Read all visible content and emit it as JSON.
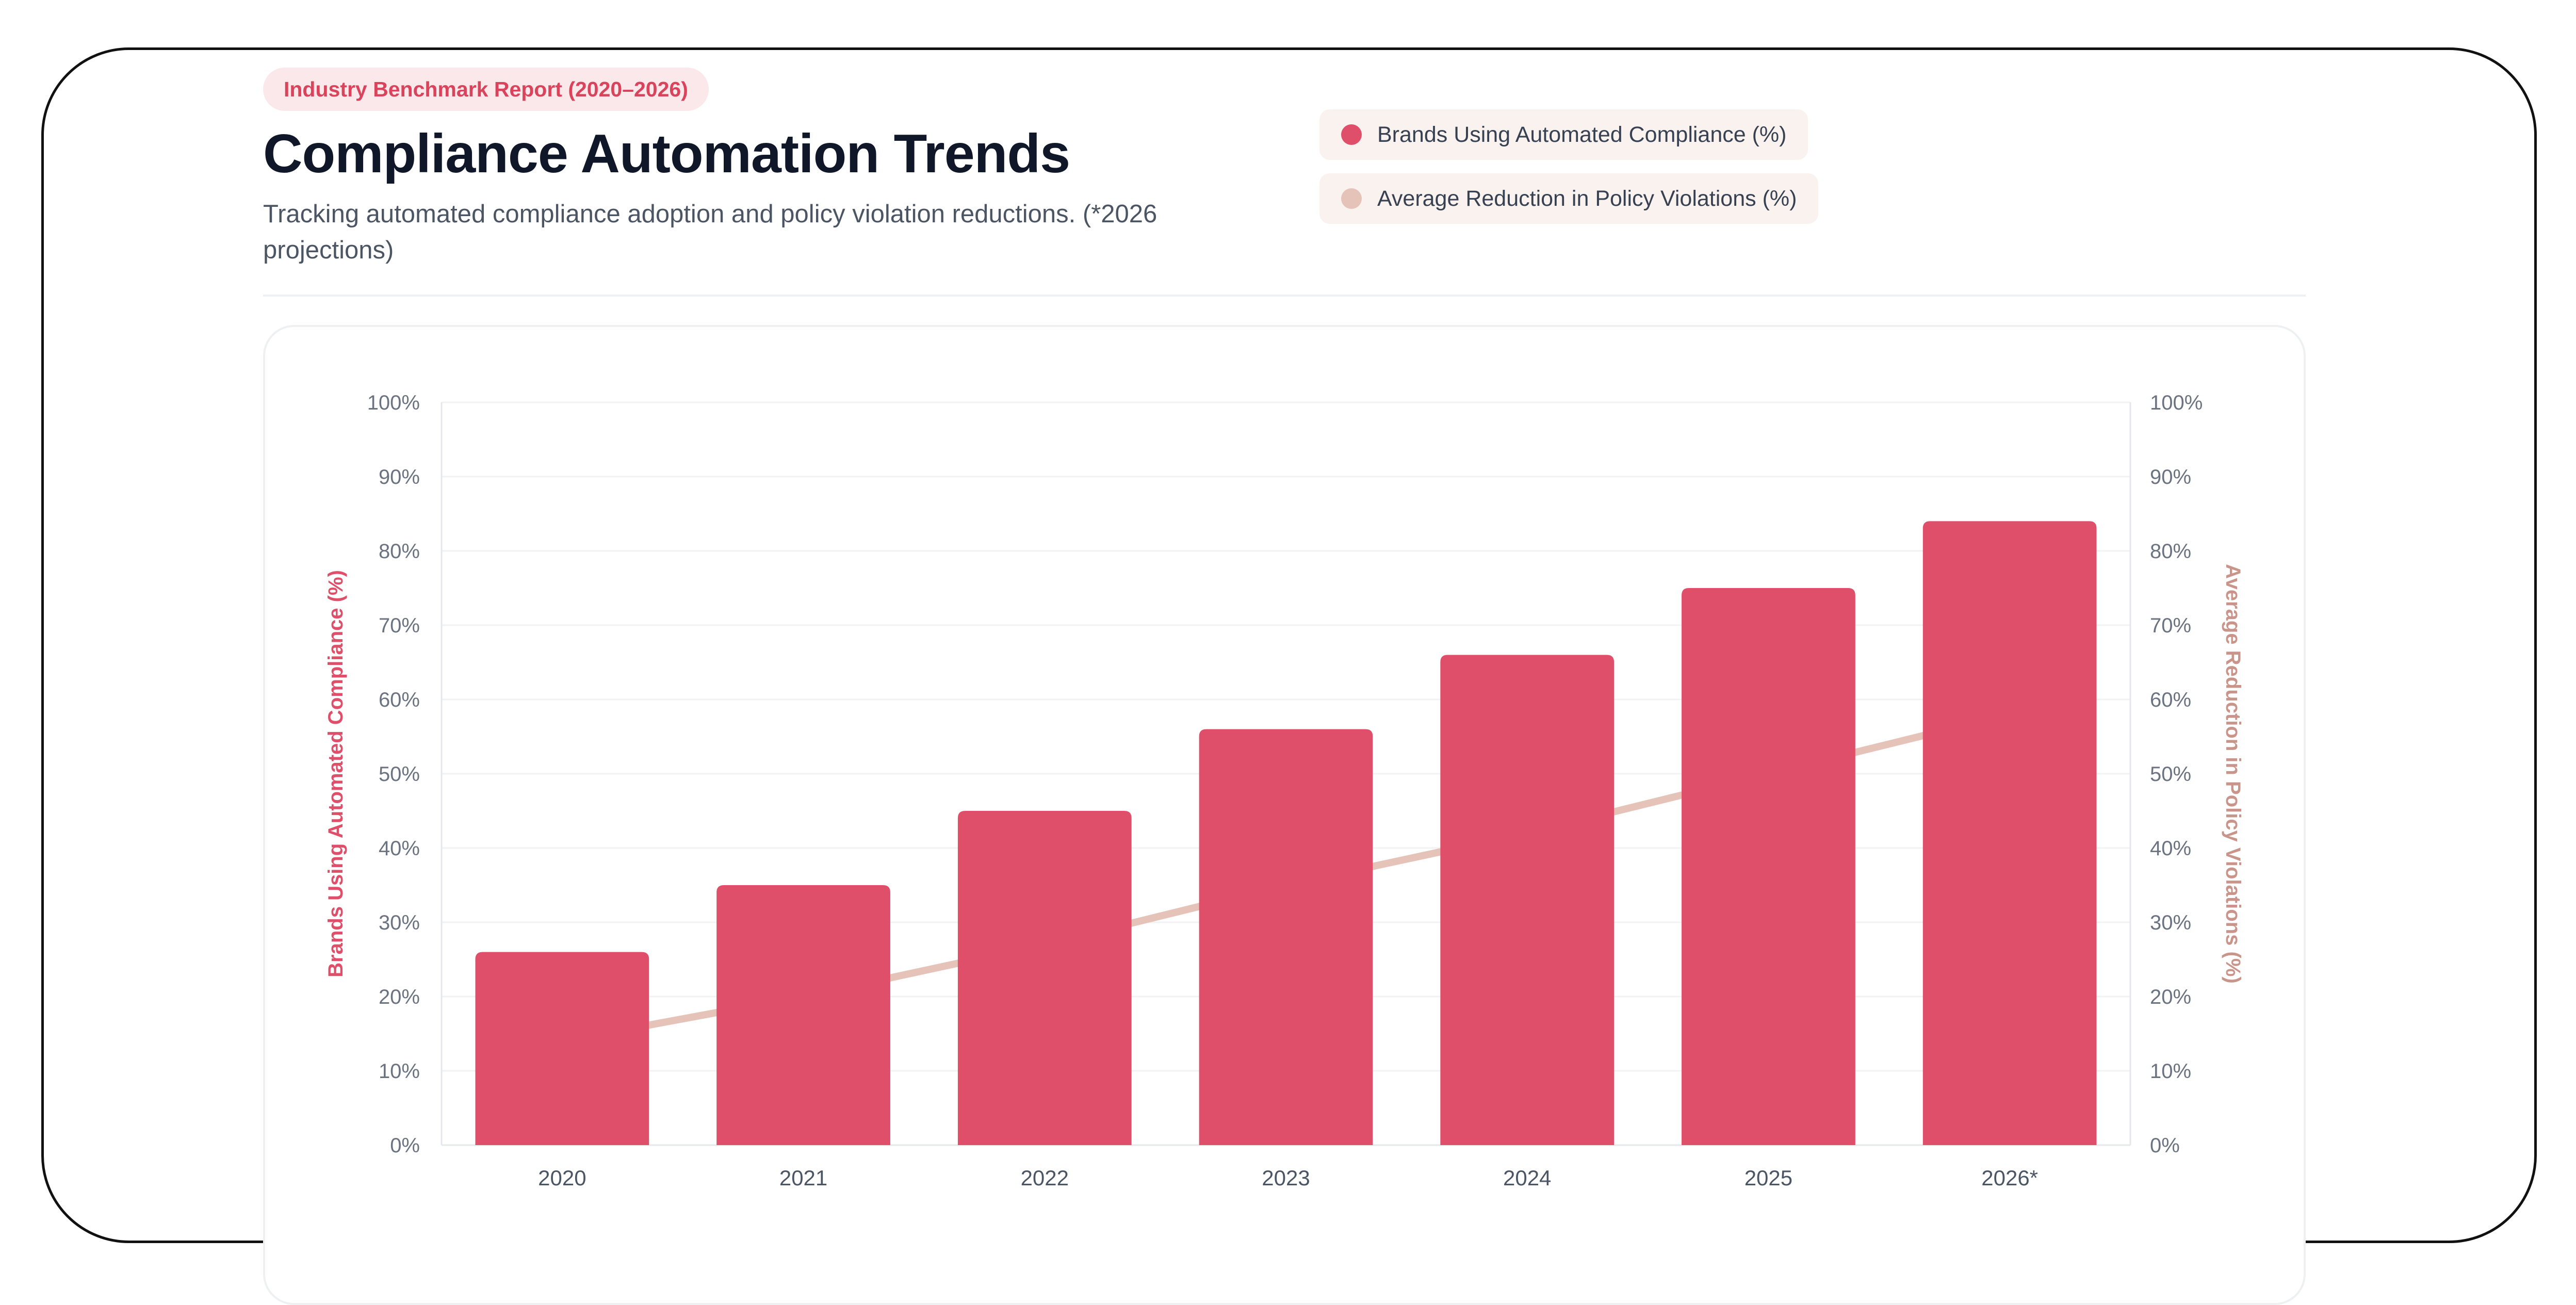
{
  "header": {
    "badge": "Industry Benchmark Report (2020–2026)",
    "title": "Compliance Automation Trends",
    "subtitle": "Tracking automated compliance adoption and policy violation reductions. (*2026 projections)"
  },
  "legend": [
    {
      "label": "Brands Using Automated Compliance (%)",
      "color": "#e04f69"
    },
    {
      "label": "Average Reduction in Policy Violations (%)",
      "color": "#e6c3b9"
    }
  ],
  "chart_data": {
    "type": "bar",
    "categories": [
      "2020",
      "2021",
      "2022",
      "2023",
      "2024",
      "2025",
      "2026*"
    ],
    "series": [
      {
        "name": "Brands Using Automated Compliance (%)",
        "type": "bar",
        "axis": "left",
        "color": "#e04f69",
        "values": [
          26,
          35,
          45,
          56,
          66,
          75,
          84
        ]
      },
      {
        "name": "Average Reduction in Policy Violations (%)",
        "type": "line",
        "axis": "right",
        "color": "#e6c3b9",
        "values": [
          14,
          20,
          27,
          35,
          42,
          50,
          58
        ]
      }
    ],
    "ylabel_left": "Brands Using Automated Compliance (%)",
    "ylabel_right": "Average Reduction in Policy Violations (%)",
    "ylim": [
      0,
      100
    ],
    "yticks": [
      "0%",
      "10%",
      "20%",
      "30%",
      "40%",
      "50%",
      "60%",
      "70%",
      "80%",
      "90%",
      "100%"
    ],
    "grid": true,
    "left_axis_label_color": "#e04f69",
    "right_axis_label_color": "#c9958a"
  }
}
